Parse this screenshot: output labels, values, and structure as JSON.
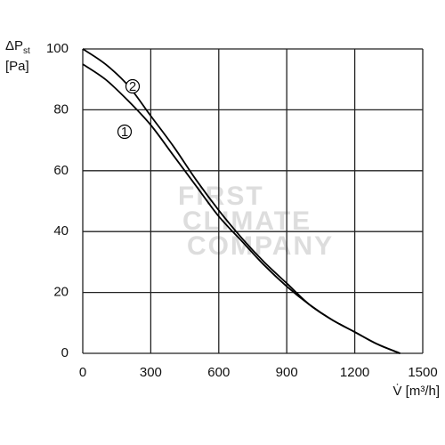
{
  "chart_data": {
    "type": "line",
    "y_label": "ΔP",
    "y_label_sub": "st",
    "y_unit": "[Pa]",
    "x_label": "V̇ [m³/h]",
    "watermark": [
      "FIRST",
      "CLIMATE",
      "COMPANY"
    ],
    "x": [
      0,
      100,
      200,
      300,
      400,
      500,
      600,
      700,
      800,
      900,
      1000,
      1100,
      1200,
      1300,
      1400
    ],
    "series": [
      {
        "name": "1",
        "color": "#000000",
        "values": [
          95,
          90,
          83,
          75,
          65,
          55,
          45,
          37,
          29,
          22,
          16,
          11,
          7,
          3,
          0
        ]
      },
      {
        "name": "2",
        "color": "#000000",
        "values": [
          100,
          95,
          88,
          78,
          68,
          57,
          47,
          38,
          30,
          23,
          16,
          11,
          7,
          3,
          0
        ]
      }
    ],
    "xlim": [
      0,
      1500
    ],
    "xticks": [
      0,
      300,
      600,
      900,
      1200,
      1500
    ],
    "ylim": [
      0,
      100
    ],
    "yticks": [
      0,
      20,
      40,
      60,
      80,
      100
    ],
    "grid": true
  }
}
